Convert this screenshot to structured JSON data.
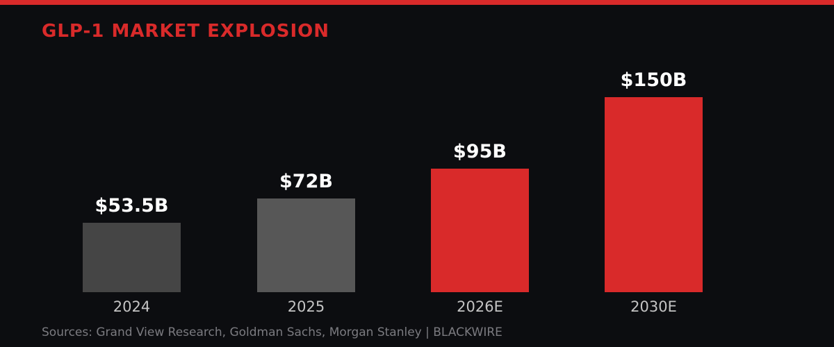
{
  "page": {
    "title": "GLP-1 MARKET EXPLOSION",
    "sources_caption": "Sources: Grand View Research, Goldman Sachs, Morgan Stanley | BLACKWIRE",
    "colors": {
      "background": "#0c0d10",
      "accent_red": "#d92a2a",
      "bar_gray_dark": "#454545",
      "bar_gray_light": "#575757",
      "value_label": "#ffffff",
      "axis_label": "#c4c4c4",
      "caption": "#7b7b80"
    }
  },
  "chart_data": {
    "type": "bar",
    "title": "GLP-1 MARKET EXPLOSION",
    "categories": [
      "2024",
      "2025",
      "2026E",
      "2030E"
    ],
    "values": [
      53.5,
      72,
      95,
      150
    ],
    "value_labels": [
      "$53.5B",
      "$72B",
      "$95B",
      "$150B"
    ],
    "bar_colors": [
      "#454545",
      "#575757",
      "#d92a2a",
      "#d92a2a"
    ],
    "ylim": [
      0,
      150
    ],
    "grid": false,
    "legend": false,
    "xlabel": "",
    "ylabel": "",
    "annotation": "Sources: Grand View Research, Goldman Sachs, Morgan Stanley | BLACKWIRE"
  }
}
